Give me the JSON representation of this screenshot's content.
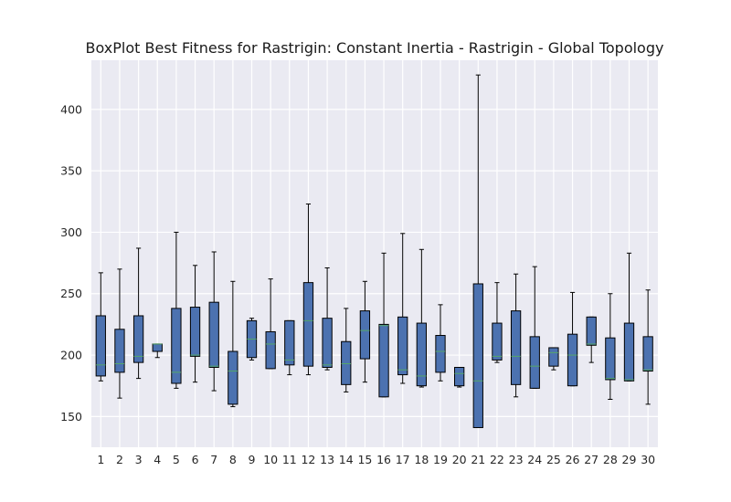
{
  "chart_data": {
    "type": "boxplot",
    "title": "BoxPlot Best Fitness for Rastrigin: Constant Inertia - Rastrigin - Global Topology",
    "xlabel": "",
    "ylabel": "",
    "ylim": [
      125,
      440
    ],
    "yticks": [
      150,
      200,
      250,
      300,
      350,
      400
    ],
    "grid": true,
    "colors": {
      "background": "#eaeaf2",
      "grid": "#ffffff",
      "box_fill": "#4c72b0",
      "median": "#55a868",
      "line": "#000000"
    },
    "categories": [
      "1",
      "2",
      "3",
      "4",
      "5",
      "6",
      "7",
      "8",
      "9",
      "10",
      "11",
      "12",
      "13",
      "14",
      "15",
      "16",
      "17",
      "18",
      "19",
      "20",
      "21",
      "22",
      "23",
      "24",
      "25",
      "26",
      "27",
      "28",
      "29",
      "30"
    ],
    "boxes": [
      {
        "whislo": 179,
        "q1": 183,
        "med": 192,
        "q3": 232,
        "whishi": 267
      },
      {
        "whislo": 165,
        "q1": 186,
        "med": 193,
        "q3": 221,
        "whishi": 270
      },
      {
        "whislo": 181,
        "q1": 194,
        "med": 199,
        "q3": 232,
        "whishi": 287
      },
      {
        "whislo": 198,
        "q1": 203,
        "med": 209,
        "q3": 209,
        "whishi": 209
      },
      {
        "whislo": 173,
        "q1": 177,
        "med": 186,
        "q3": 238,
        "whishi": 300
      },
      {
        "whislo": 178,
        "q1": 199,
        "med": 200,
        "q3": 239,
        "whishi": 273
      },
      {
        "whislo": 171,
        "q1": 190,
        "med": 191,
        "q3": 243,
        "whishi": 284
      },
      {
        "whislo": 158,
        "q1": 160,
        "med": 187,
        "q3": 203,
        "whishi": 260
      },
      {
        "whislo": 196,
        "q1": 198,
        "med": 213,
        "q3": 228,
        "whishi": 230
      },
      {
        "whislo": 189,
        "q1": 189,
        "med": 209,
        "q3": 219,
        "whishi": 262
      },
      {
        "whislo": 184,
        "q1": 192,
        "med": 196,
        "q3": 228,
        "whishi": 228
      },
      {
        "whislo": 184,
        "q1": 191,
        "med": 228,
        "q3": 259,
        "whishi": 323
      },
      {
        "whislo": 188,
        "q1": 190,
        "med": 192,
        "q3": 230,
        "whishi": 271
      },
      {
        "whislo": 170,
        "q1": 176,
        "med": 193,
        "q3": 211,
        "whishi": 238
      },
      {
        "whislo": 178,
        "q1": 197,
        "med": 220,
        "q3": 236,
        "whishi": 260
      },
      {
        "whislo": 166,
        "q1": 166,
        "med": 224,
        "q3": 225,
        "whishi": 283
      },
      {
        "whislo": 177,
        "q1": 184,
        "med": 188,
        "q3": 231,
        "whishi": 299
      },
      {
        "whislo": 174,
        "q1": 175,
        "med": 183,
        "q3": 226,
        "whishi": 286
      },
      {
        "whislo": 179,
        "q1": 186,
        "med": 203,
        "q3": 216,
        "whishi": 241
      },
      {
        "whislo": 174,
        "q1": 175,
        "med": 185,
        "q3": 190,
        "whishi": 190
      },
      {
        "whislo": 141,
        "q1": 141,
        "med": 179,
        "q3": 258,
        "whishi": 428
      },
      {
        "whislo": 194,
        "q1": 196,
        "med": 199,
        "q3": 226,
        "whishi": 259
      },
      {
        "whislo": 166,
        "q1": 176,
        "med": 199,
        "q3": 236,
        "whishi": 266
      },
      {
        "whislo": 173,
        "q1": 173,
        "med": 191,
        "q3": 215,
        "whishi": 272
      },
      {
        "whislo": 188,
        "q1": 191,
        "med": 202,
        "q3": 206,
        "whishi": 206
      },
      {
        "whislo": 175,
        "q1": 175,
        "med": 200,
        "q3": 217,
        "whishi": 251
      },
      {
        "whislo": 194,
        "q1": 208,
        "med": 209,
        "q3": 231,
        "whishi": 231
      },
      {
        "whislo": 164,
        "q1": 180,
        "med": 181,
        "q3": 214,
        "whishi": 250
      },
      {
        "whislo": 179,
        "q1": 179,
        "med": 180,
        "q3": 226,
        "whishi": 283
      },
      {
        "whislo": 160,
        "q1": 187,
        "med": 188,
        "q3": 215,
        "whishi": 253
      }
    ]
  }
}
